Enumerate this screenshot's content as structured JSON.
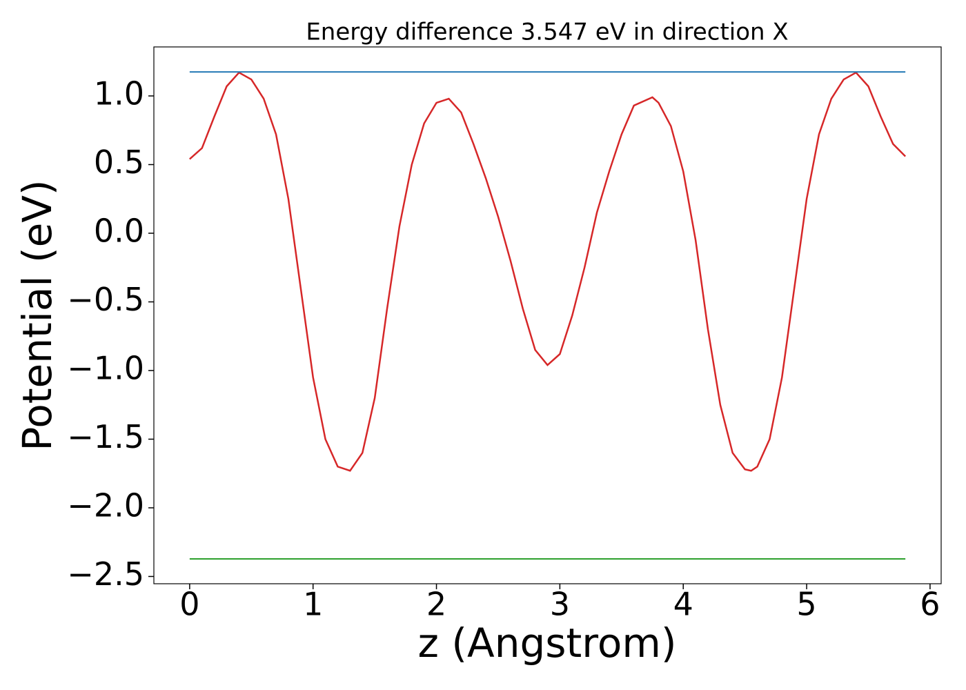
{
  "chart_data": {
    "type": "line",
    "title": "Energy difference 3.547 eV in direction X",
    "x_label": "z (Angstrom)",
    "y_label": "Potential (eV)",
    "xlim": [
      -0.29,
      6.09
    ],
    "ylim": [
      -2.553,
      1.357
    ],
    "xticks": [
      0,
      1,
      2,
      3,
      4,
      5,
      6
    ],
    "yticks": [
      {
        "value": -2.5,
        "label": "−2.5"
      },
      {
        "value": -2.0,
        "label": "−2.0"
      },
      {
        "value": -1.5,
        "label": "−1.5"
      },
      {
        "value": -1.0,
        "label": "−1.0"
      },
      {
        "value": -0.5,
        "label": "−0.5"
      },
      {
        "value": 0,
        "label": "0.0"
      },
      0.5,
      {
        "value": 1.0,
        "label": "1.0"
      }
    ],
    "grid": false,
    "series": [
      {
        "color": "#d62728",
        "x": [
          0,
          0.1,
          0.2,
          0.3,
          0.4,
          0.5,
          0.6,
          0.7,
          0.8,
          0.9,
          1.0,
          1.1,
          1.2,
          1.3,
          1.4,
          1.5,
          1.6,
          1.7,
          1.8,
          1.9,
          2.0,
          2.1,
          2.2,
          2.3,
          2.4,
          2.5,
          2.6,
          2.7,
          2.8,
          2.9,
          3.0,
          3.1,
          3.2,
          3.3,
          3.4,
          3.5,
          3.6,
          3.75,
          3.8,
          3.9,
          4.0,
          4.1,
          4.2,
          4.3,
          4.4,
          4.5,
          4.55,
          4.6,
          4.7,
          4.8,
          4.9,
          5.0,
          5.1,
          5.2,
          5.3,
          5.4,
          5.5,
          5.6,
          5.7,
          5.8
        ],
        "values": [
          0.54,
          0.62,
          0.85,
          1.07,
          1.17,
          1.12,
          0.98,
          0.72,
          0.25,
          -0.4,
          -1.05,
          -1.5,
          -1.7,
          -1.73,
          -1.6,
          -1.2,
          -0.55,
          0.05,
          0.5,
          0.8,
          0.95,
          0.98,
          0.88,
          0.65,
          0.4,
          0.12,
          -0.2,
          -0.55,
          -0.85,
          -0.96,
          -0.88,
          -0.6,
          -0.25,
          0.15,
          0.45,
          0.72,
          0.93,
          0.99,
          0.95,
          0.78,
          0.45,
          -0.05,
          -0.7,
          -1.25,
          -1.6,
          -1.72,
          -1.73,
          -1.7,
          -1.5,
          -1.05,
          -0.4,
          0.25,
          0.72,
          0.98,
          1.12,
          1.17,
          1.07,
          0.85,
          0.65,
          0.56
        ]
      },
      {
        "color": "#1f77b4",
        "x": [
          0,
          5.8
        ],
        "values": [
          1.175,
          1.175
        ]
      },
      {
        "color": "#2ca02c",
        "x": [
          0,
          5.8
        ],
        "values": [
          -2.372,
          -2.372
        ]
      }
    ]
  }
}
